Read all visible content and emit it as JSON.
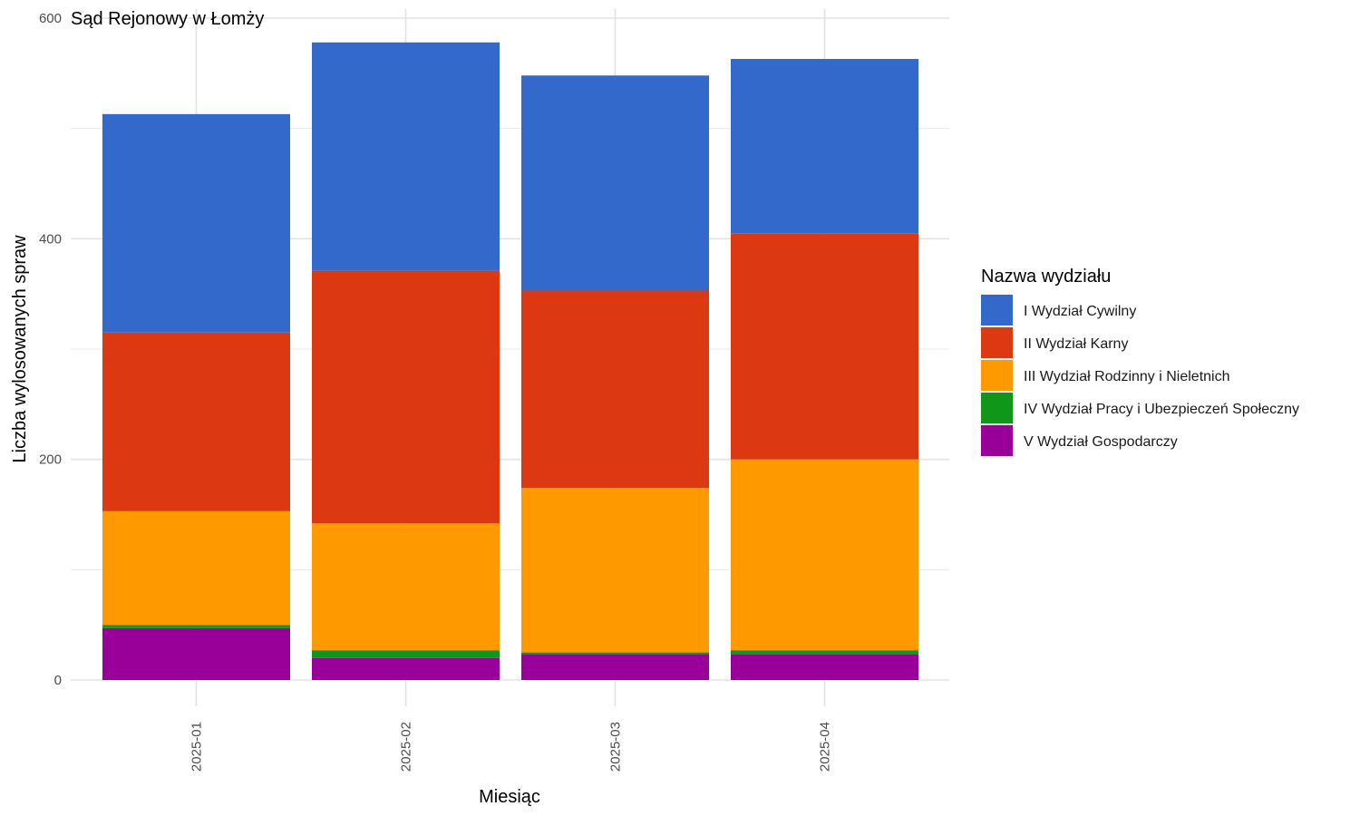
{
  "chart_data": {
    "type": "bar",
    "stacked": true,
    "title": "Sąd Rejonowy w Łomży",
    "xlabel": "Miesiąc",
    "ylabel": "Liczba wylosowanych spraw",
    "categories": [
      "2025-01",
      "2025-02",
      "2025-03",
      "2025-04"
    ],
    "ylim": [
      0,
      600
    ],
    "yticks": [
      0,
      200,
      400,
      600
    ],
    "grid": true,
    "legend": {
      "title": "Nazwa wydziału",
      "position": "right"
    },
    "series": [
      {
        "name": "I Wydział Cywilny",
        "color": "#3469CC",
        "values": [
          198,
          207,
          195,
          158
        ]
      },
      {
        "name": "II Wydział Karny",
        "color": "#DC3912",
        "values": [
          162,
          229,
          179,
          205
        ]
      },
      {
        "name": "III Wydział Rodzinny i Nieletnich",
        "color": "#FF9900",
        "values": [
          103,
          115,
          149,
          173
        ]
      },
      {
        "name": "IV Wydział Pracy i Ubezpieczeń Społeczny",
        "color": "#109618",
        "values": [
          3,
          7,
          2,
          4
        ]
      },
      {
        "name": "V Wydział Gospodarczy",
        "color": "#990099",
        "values": [
          47,
          20,
          23,
          23
        ]
      }
    ]
  }
}
